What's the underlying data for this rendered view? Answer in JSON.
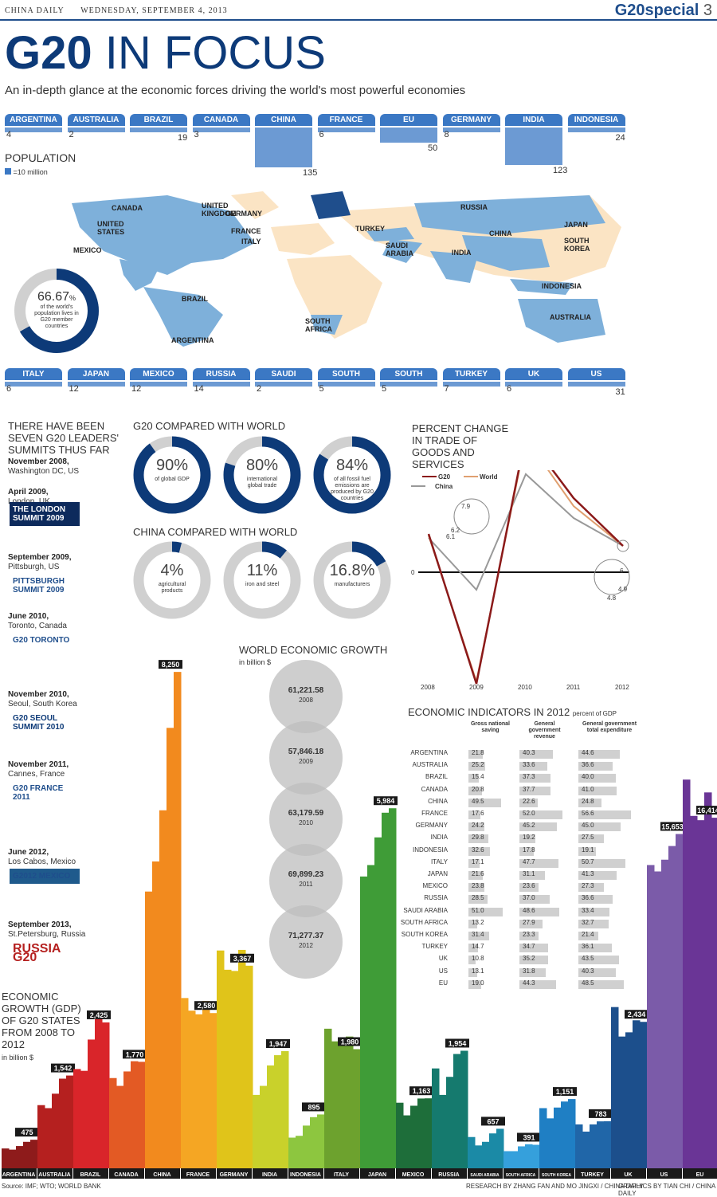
{
  "header": {
    "paper": "CHINA DAILY",
    "date": "WEDNESDAY, SEPTEMBER 4, 2013",
    "section": "G20special",
    "page_no": "3"
  },
  "title": {
    "bold": "G20",
    "rest": "IN FOCUS"
  },
  "subtitle": "An in-depth glance at the economic forces driving the world's most powerful economies",
  "population": {
    "label": "POPULATION",
    "legend": "=10 million",
    "top_row": [
      {
        "name": "ARGENTINA",
        "value": 4
      },
      {
        "name": "AUSTRALIA",
        "value": 2
      },
      {
        "name": "BRAZIL",
        "value": 19
      },
      {
        "name": "CANADA",
        "value": 3
      },
      {
        "name": "CHINA",
        "value": 135
      },
      {
        "name": "FRANCE",
        "value": 6
      },
      {
        "name": "EU",
        "value": 50
      },
      {
        "name": "GERMANY",
        "value": 8
      },
      {
        "name": "INDIA",
        "value": 123
      },
      {
        "name": "INDONESIA",
        "value": 24
      }
    ],
    "bottom_row": [
      {
        "name": "ITALY",
        "value": 6
      },
      {
        "name": "JAPAN",
        "value": 12
      },
      {
        "name": "MEXICO",
        "value": 12
      },
      {
        "name": "RUSSIA",
        "value": 14
      },
      {
        "name": "SAUDI ARABIA",
        "value": 2
      },
      {
        "name": "SOUTH AFRICA",
        "value": 5
      },
      {
        "name": "SOUTH KOREA",
        "value": 5
      },
      {
        "name": "TURKEY",
        "value": 7
      },
      {
        "name": "UK",
        "value": 6
      },
      {
        "name": "US",
        "value": 31
      }
    ]
  },
  "map": {
    "labels": [
      "CANADA",
      "UNITED STATES",
      "MEXICO",
      "BRAZIL",
      "ARGENTINA",
      "UNITED KINGDOM",
      "GERMANY",
      "FRANCE",
      "ITALY",
      "TURKEY",
      "SAUDI ARABIA",
      "SOUTH AFRICA",
      "RUSSIA",
      "CHINA",
      "INDIA",
      "JAPAN",
      "SOUTH KOREA",
      "INDONESIA",
      "AUSTRALIA"
    ],
    "donut_value": "66.67",
    "donut_unit": "%",
    "donut_text": "of the world's population lives in G20 member countries"
  },
  "summits": {
    "title": "THERE HAVE BEEN SEVEN G20 LEADERS' SUMMITS THUS FAR",
    "items": [
      {
        "date": "November 2008,",
        "place": "Washington DC, US",
        "logo": ""
      },
      {
        "date": "April 2009,",
        "place": "London, UK",
        "logo": "THE LONDON SUMMIT 2009"
      },
      {
        "date": "September 2009,",
        "place": "Pittsburgh, US",
        "logo": "PITTSBURGH SUMMIT 2009"
      },
      {
        "date": "June 2010,",
        "place": "Toronto, Canada",
        "logo": "G20 TORONTO"
      },
      {
        "date": "November 2010,",
        "place": "Seoul, South Korea",
        "logo": "G20 SEOUL SUMMIT 2010"
      },
      {
        "date": "November 2011,",
        "place": "Cannes, France",
        "logo": "G20 FRANCE 2011"
      },
      {
        "date": "June 2012,",
        "place": "Los Cabos, Mexico",
        "logo": "G2012 MEXICO"
      },
      {
        "date": "September 2013,",
        "place": "St.Petersburg, Russia",
        "logo": "RUSSIA G20"
      }
    ]
  },
  "g20_vs_world": {
    "title": "G20 COMPARED WITH WORLD",
    "items": [
      {
        "value": 90,
        "label": "of global GDP"
      },
      {
        "value": 80,
        "label": "international global trade"
      },
      {
        "value": 84,
        "label": "of all fossil fuel emissions are produced by G20 countries"
      }
    ]
  },
  "china_vs_world": {
    "title": "CHINA COMPARED WITH WORLD",
    "items": [
      {
        "value": 4,
        "label": "agricultural products"
      },
      {
        "value": 11,
        "label": "iron and steel"
      },
      {
        "value": 16.8,
        "label": "manufacturers"
      }
    ]
  },
  "trade_chart": {
    "title": "PERCENT CHANGE IN TRADE OF GOODS AND SERVICES",
    "legend": [
      "G20",
      "World",
      "China"
    ],
    "x": [
      "2008",
      "2009",
      "2010",
      "2011",
      "2012"
    ],
    "zero_label": "0",
    "callouts": [
      "7.9",
      "6.2",
      "6.1",
      "6",
      "4.9",
      "4.8"
    ],
    "colors": {
      "G20": "#8b1a1a",
      "World": "#e0a070",
      "China": "#999999"
    }
  },
  "growth": {
    "title": "WORLD ECONOMIC GROWTH",
    "unit": "in billion $",
    "items": [
      {
        "value": "61,221.58",
        "year": "2008"
      },
      {
        "value": "57,846.18",
        "year": "2009"
      },
      {
        "value": "63,179.59",
        "year": "2010"
      },
      {
        "value": "69,899.23",
        "year": "2011"
      },
      {
        "value": "71,277.37",
        "year": "2012"
      }
    ]
  },
  "indicators": {
    "title": "ECONOMIC INDICATORS IN 2012",
    "unit": "percent of GDP",
    "columns": [
      "Gross national saving",
      "General government revenue",
      "General government total expenditure"
    ],
    "rows": [
      {
        "c": "ARGENTINA",
        "a": "21.8",
        "b": "40.3",
        "d": "44.6"
      },
      {
        "c": "AUSTRALIA",
        "a": "25.2",
        "b": "33.6",
        "d": "36.6"
      },
      {
        "c": "BRAZIL",
        "a": "15.4",
        "b": "37.3",
        "d": "40.0"
      },
      {
        "c": "CANADA",
        "a": "20.8",
        "b": "37.7",
        "d": "41.0"
      },
      {
        "c": "CHINA",
        "a": "49.5",
        "b": "22.6",
        "d": "24.8"
      },
      {
        "c": "FRANCE",
        "a": "17.6",
        "b": "52.0",
        "d": "56.6"
      },
      {
        "c": "GERMANY",
        "a": "24.2",
        "b": "45.2",
        "d": "45.0"
      },
      {
        "c": "INDIA",
        "a": "29.8",
        "b": "19.2",
        "d": "27.5"
      },
      {
        "c": "INDONESIA",
        "a": "32.6",
        "b": "17.8",
        "d": "19.1"
      },
      {
        "c": "ITALY",
        "a": "17.1",
        "b": "47.7",
        "d": "50.7"
      },
      {
        "c": "JAPAN",
        "a": "21.6",
        "b": "31.1",
        "d": "41.3"
      },
      {
        "c": "MEXICO",
        "a": "23.8",
        "b": "23.6",
        "d": "27.3"
      },
      {
        "c": "RUSSIA",
        "a": "28.5",
        "b": "37.0",
        "d": "36.6"
      },
      {
        "c": "SAUDI ARABIA",
        "a": "51.0",
        "b": "48.6",
        "d": "33.4"
      },
      {
        "c": "SOUTH AFRICA",
        "a": "13.2",
        "b": "27.9",
        "d": "32.7"
      },
      {
        "c": "SOUTH KOREA",
        "a": "31.4",
        "b": "23.3",
        "d": "21.4"
      },
      {
        "c": "TURKEY",
        "a": "14.7",
        "b": "34.7",
        "d": "36.1"
      },
      {
        "c": "UK",
        "a": "10.8",
        "b": "35.2",
        "d": "43.5"
      },
      {
        "c": "US",
        "a": "13.1",
        "b": "31.8",
        "d": "40.3"
      },
      {
        "c": "EU",
        "a": "19.0",
        "b": "44.3",
        "d": "48.5"
      }
    ]
  },
  "gdp_title": "ECONOMIC GROWTH (GDP) OF G20 STATES FROM 2008 TO 2012",
  "gdp_unit": "in billion $",
  "chart_data": {
    "type": "bar",
    "title": "ECONOMIC GROWTH (GDP) OF G20 STATES FROM 2008 TO 2012",
    "ylabel": "in billion $",
    "categories": [
      "ARGENTINA",
      "AUSTRALIA",
      "BRAZIL",
      "CANADA",
      "CHINA",
      "FRANCE",
      "GERMANY",
      "INDIA",
      "INDONESIA",
      "ITALY",
      "JAPAN",
      "MEXICO",
      "RUSSIA",
      "SAUDI ARABIA",
      "SOUTH AFRICA",
      "SOUTH KOREA",
      "TURKEY",
      "UK",
      "US",
      "EU"
    ],
    "labels_2012": [
      "475",
      "1,542",
      "2,425",
      "1,770",
      "8,250",
      "2,580",
      "3,367",
      "1,947",
      "895",
      "1,980",
      "5,984",
      "1,163",
      "1,954",
      "657",
      "391",
      "1,151",
      "783",
      "2,434",
      "15,653",
      "16,414"
    ],
    "series": [
      {
        "values": [
          330,
          1050,
          1650,
          1500,
          4600,
          2830,
          3620,
          1220,
          510,
          2320,
          4850,
          1090,
          1660,
          520,
          285,
          1000,
          730,
          2680,
          14200,
          18200
        ]
      },
      {
        "values": [
          310,
          1000,
          1620,
          1370,
          5100,
          2620,
          3300,
          1370,
          540,
          2110,
          5040,
          880,
          1220,
          380,
          285,
          830,
          610,
          2190,
          13900,
          16500
        ]
      },
      {
        "values": [
          370,
          1240,
          2140,
          1610,
          5950,
          2560,
          3280,
          1710,
          710,
          2050,
          5500,
          1040,
          1520,
          440,
          365,
          1010,
          730,
          2260,
          14450,
          16300
        ]
      },
      {
        "values": [
          440,
          1490,
          2480,
          1780,
          7320,
          2780,
          3630,
          1880,
          850,
          2190,
          5910,
          1160,
          1900,
          580,
          400,
          1110,
          780,
          2460,
          15090,
          17600
        ]
      },
      {
        "values": [
          475,
          1542,
          2425,
          1770,
          8250,
          2580,
          3367,
          1947,
          895,
          1980,
          5984,
          1163,
          1954,
          657,
          391,
          1151,
          783,
          2434,
          15653,
          16414
        ]
      }
    ],
    "colors": [
      "#8e1b1b",
      "#b5201f",
      "#d9252a",
      "#e35a24",
      "#f28a1e",
      "#f5a623",
      "#e0c41a",
      "#c9d12b",
      "#8dc63f",
      "#6da22e",
      "#3f9c37",
      "#1e6e3a",
      "#157a6e",
      "#1b8aa6",
      "#35a0dc",
      "#1f7fc4",
      "#2066a8",
      "#1c4f8c",
      "#7b5ba9",
      "#6a3596"
    ]
  },
  "footer": {
    "source": "Source: IMF; WTO; WORLD BANK",
    "research": "RESEARCH BY ZHANG FAN AND MO JINGXI / CHINA DAILY",
    "graphics": "GRAPHICS BY TIAN CHI / CHINA DAILY"
  }
}
